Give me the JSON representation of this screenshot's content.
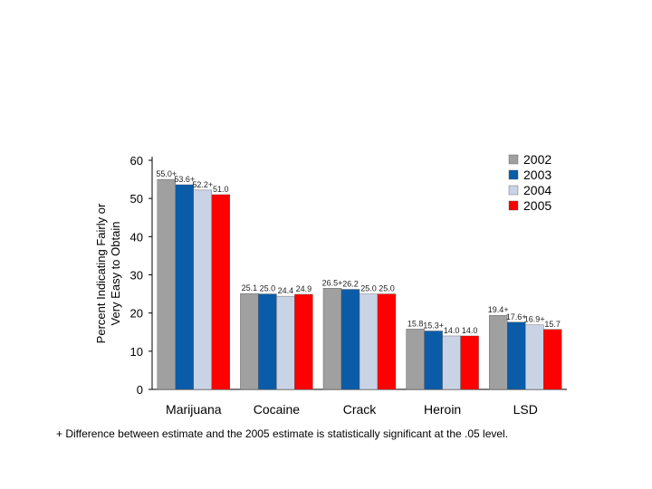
{
  "chart_data": {
    "type": "bar",
    "categories": [
      "Marijuana",
      "Cocaine",
      "Crack",
      "Heroin",
      "LSD"
    ],
    "series": [
      {
        "name": "2002",
        "color": "#a0a0a0",
        "values": [
          55.0,
          25.1,
          26.5,
          15.8,
          19.4
        ],
        "labels": [
          "55.0+",
          "25.1",
          "26.5+",
          "15.8",
          "19.4+"
        ]
      },
      {
        "name": "2003",
        "color": "#0a5ca8",
        "values": [
          53.6,
          25.0,
          26.2,
          15.3,
          17.6
        ],
        "labels": [
          "53.6+",
          "25.0",
          "26.2",
          "15.3+",
          "17.6+"
        ]
      },
      {
        "name": "2004",
        "color": "#c9d3e6",
        "values": [
          52.2,
          24.4,
          25.0,
          14.0,
          16.9
        ],
        "labels": [
          "52.2+",
          "24.4",
          "25.0",
          "14.0",
          "16.9+"
        ]
      },
      {
        "name": "2005",
        "color": "#ff0000",
        "values": [
          51.0,
          24.9,
          25.0,
          14.0,
          15.7
        ],
        "labels": [
          "51.0",
          "24.9",
          "25.0",
          "14.0",
          "15.7"
        ]
      }
    ],
    "ylabel_lines": [
      "Percent Indicating Fairly or",
      "Very Easy to Obtain"
    ],
    "xlabel": "",
    "title": "",
    "ylim": [
      0,
      60
    ],
    "yticks": [
      0,
      10,
      20,
      30,
      40,
      50,
      60
    ],
    "grid": false,
    "legend_position": "top-right"
  },
  "footnote": "+ Difference between estimate and the 2005 estimate is statistically significant at the .05 level."
}
